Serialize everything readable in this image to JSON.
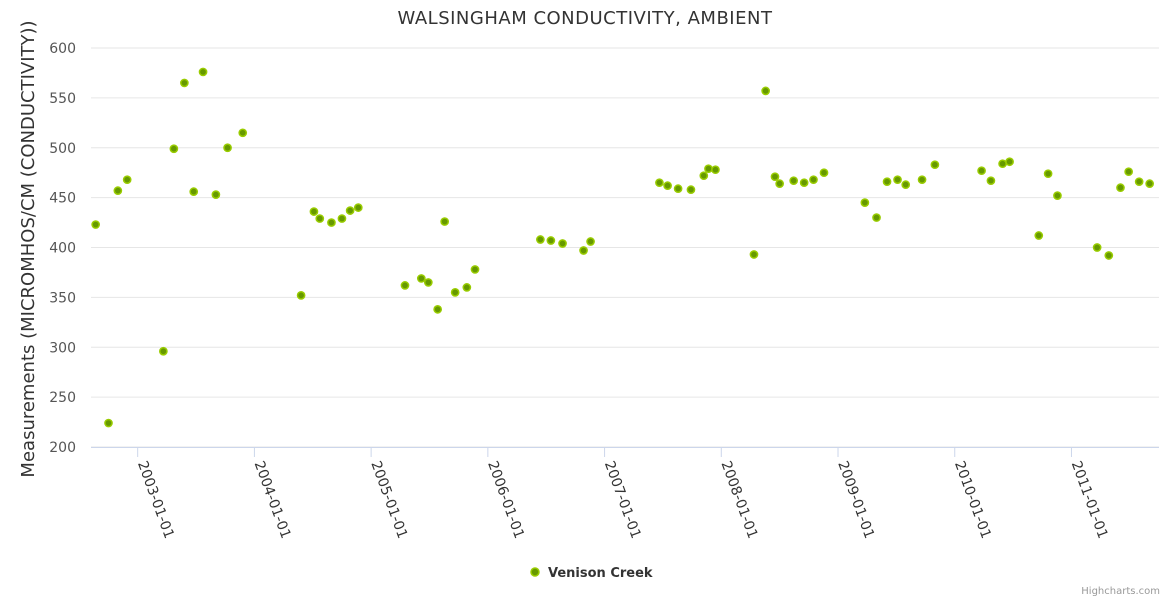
{
  "chart_data": {
    "type": "scatter",
    "title": "WALSINGHAM CONDUCTIVITY, AMBIENT",
    "ylabel": "Measurements (MICROMHOS/CM (CONDUCTIVITY))",
    "xlabel": "",
    "ylim": [
      200,
      600
    ],
    "yticks": [
      200,
      250,
      300,
      350,
      400,
      450,
      500,
      550,
      600
    ],
    "xlim": [
      2002.6,
      2011.75
    ],
    "xticks": [
      {
        "value": 2003,
        "label": "2003-01-01"
      },
      {
        "value": 2004,
        "label": "2004-01-01"
      },
      {
        "value": 2005,
        "label": "2005-01-01"
      },
      {
        "value": 2006,
        "label": "2006-01-01"
      },
      {
        "value": 2007,
        "label": "2007-01-01"
      },
      {
        "value": 2008,
        "label": "2008-01-01"
      },
      {
        "value": 2009,
        "label": "2009-01-01"
      },
      {
        "value": 2010,
        "label": "2010-01-01"
      },
      {
        "value": 2011,
        "label": "2011-01-01"
      }
    ],
    "grid": true,
    "legend": "bottom-center",
    "series": [
      {
        "name": "Venison Creek",
        "color": "#669900",
        "border_color": "#99cc00",
        "x": [
          2002.64,
          2002.75,
          2002.83,
          2002.91,
          2003.22,
          2003.31,
          2003.4,
          2003.48,
          2003.56,
          2003.67,
          2003.77,
          2003.9,
          2004.4,
          2004.51,
          2004.56,
          2004.66,
          2004.75,
          2004.82,
          2004.89,
          2005.29,
          2005.43,
          2005.49,
          2005.57,
          2005.63,
          2005.72,
          2005.82,
          2005.89,
          2006.45,
          2006.54,
          2006.64,
          2006.82,
          2006.88,
          2007.47,
          2007.54,
          2007.63,
          2007.74,
          2007.85,
          2007.89,
          2007.95,
          2008.28,
          2008.38,
          2008.46,
          2008.5,
          2008.62,
          2008.71,
          2008.79,
          2008.88,
          2009.23,
          2009.33,
          2009.42,
          2009.51,
          2009.58,
          2009.72,
          2009.83,
          2010.23,
          2010.31,
          2010.41,
          2010.47,
          2010.72,
          2010.8,
          2010.88,
          2011.22,
          2011.32,
          2011.42,
          2011.49,
          2011.58,
          2011.67
        ],
        "values": [
          423,
          224,
          457,
          468,
          296,
          499,
          565,
          456,
          576,
          453,
          500,
          515,
          352,
          436,
          429,
          425,
          429,
          437,
          440,
          362,
          369,
          365,
          338,
          426,
          355,
          360,
          378,
          408,
          407,
          404,
          397,
          406,
          465,
          462,
          459,
          458,
          472,
          479,
          478,
          393,
          557,
          471,
          464,
          467,
          465,
          468,
          475,
          445,
          430,
          466,
          468,
          463,
          468,
          483,
          477,
          467,
          484,
          486,
          412,
          474,
          452,
          400,
          392,
          460,
          476,
          466,
          464
        ]
      }
    ]
  },
  "credits": "Highcharts.com"
}
